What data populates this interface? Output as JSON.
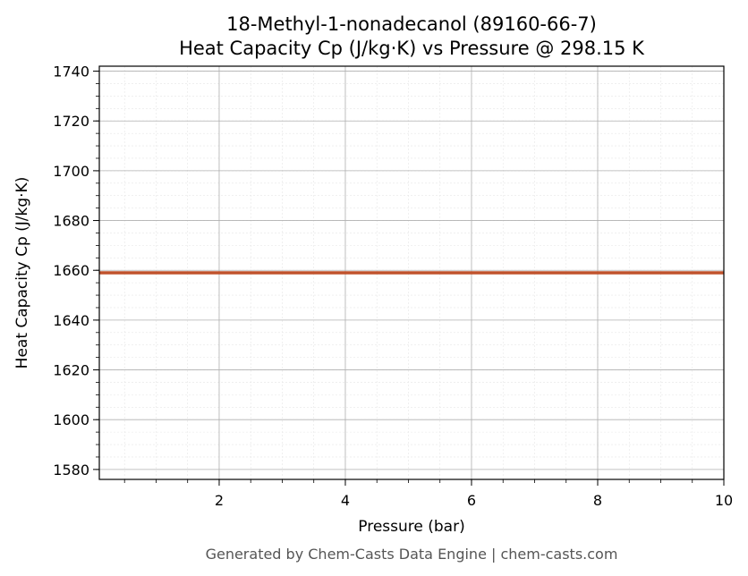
{
  "chart_data": {
    "type": "line",
    "title": "18-Methyl-1-nonadecanol (89160-66-7)",
    "subtitle": "Heat Capacity Cp (J/kg·K) vs Pressure @ 298.15 K",
    "xlabel": "Pressure (bar)",
    "ylabel": "Heat Capacity Cp (J/kg·K)",
    "xlim": [
      0.1,
      10
    ],
    "ylim": [
      1576,
      1742
    ],
    "x_ticks": [
      2,
      4,
      6,
      8,
      10
    ],
    "y_ticks": [
      1580,
      1600,
      1620,
      1640,
      1660,
      1680,
      1700,
      1720,
      1740
    ],
    "x_minor_step": 0.5,
    "y_minor_step": 5,
    "grid": true,
    "series": [
      {
        "color": "#c0522b",
        "x": [
          0.1,
          10
        ],
        "y": [
          1659,
          1659
        ]
      }
    ]
  },
  "footer": "Generated by Chem-Casts Data Engine | chem-casts.com"
}
